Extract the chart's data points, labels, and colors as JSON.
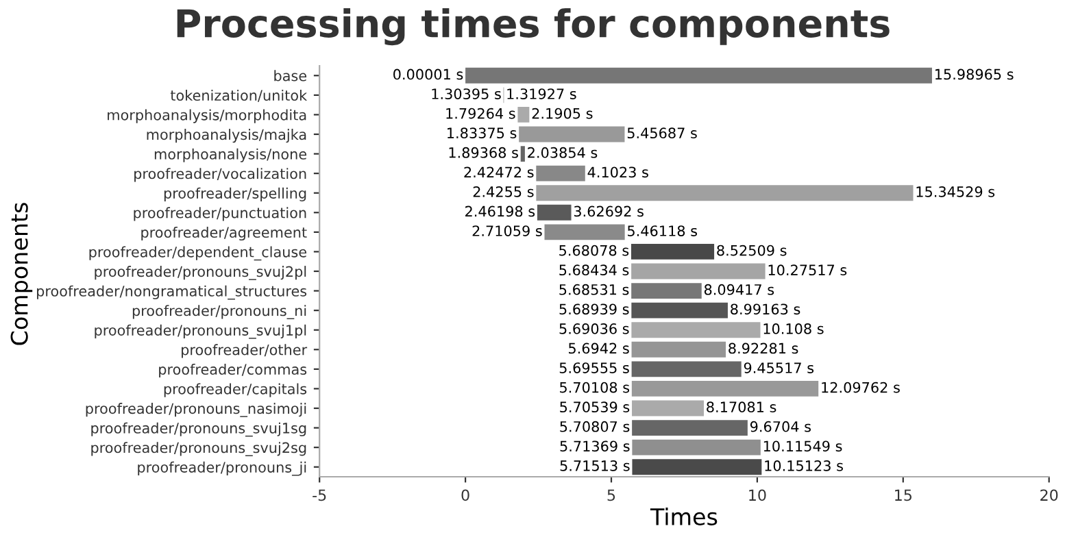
{
  "chart_data": {
    "type": "bar",
    "orientation": "horizontal",
    "title": "Processing times for components",
    "xlabel": "Times",
    "ylabel": "Components",
    "categories": [
      "base",
      "tokenization/unitok",
      "morphoanalysis/morphodita",
      "morphoanalysis/majka",
      "morphoanalysis/none",
      "proofreader/vocalization",
      "proofreader/spelling",
      "proofreader/punctuation",
      "proofreader/agreement",
      "proofreader/dependent_clause",
      "proofreader/pronouns_svuj2pl",
      "proofreader/nongramatical_structures",
      "proofreader/pronouns_ni",
      "proofreader/pronouns_svuj1pl",
      "proofreader/other",
      "proofreader/commas",
      "proofreader/capitals",
      "proofreader/pronouns_nasimoji",
      "proofreader/pronouns_svuj1sg",
      "proofreader/pronouns_svuj2sg",
      "proofreader/pronouns_ji"
    ],
    "base": [
      1e-05,
      1.30395,
      1.79264,
      1.83375,
      1.89368,
      2.42472,
      2.4255,
      2.46198,
      2.71059,
      5.68078,
      5.68434,
      5.68531,
      5.68939,
      5.69036,
      5.6942,
      5.69555,
      5.70108,
      5.70539,
      5.70807,
      5.71369,
      5.71513
    ],
    "values": [
      15.98964,
      0.01532,
      0.39786,
      3.62312,
      0.14486,
      1.67758,
      12.91979,
      1.16494,
      2.75059,
      2.84431,
      4.59083,
      2.40886,
      3.30224,
      4.41764,
      3.22861,
      3.75962,
      6.39654,
      2.46542,
      3.96233,
      4.4018,
      4.4361
    ],
    "colors": [
      "#767676",
      "#888888",
      "#aaaaaa",
      "#999999",
      "#666666",
      "#888888",
      "#a0a0a0",
      "#5a5a5a",
      "#8a8a8a",
      "#484848",
      "#a5a5a5",
      "#777777",
      "#555555",
      "#aaaaaa",
      "#959595",
      "#666666",
      "#999999",
      "#aaaaaa",
      "#666666",
      "#8f8f8f",
      "#4a4a4a"
    ],
    "value_labels": [
      "15.98965 s",
      "1.31927 s",
      "2.1905 s",
      "5.45687 s",
      "2.03854 s",
      "4.1023 s",
      "15.34529 s",
      "3.62692 s",
      "5.46118 s",
      "8.52509 s",
      "10.27517 s",
      "8.09417 s",
      "8.99163 s",
      "10.108 s",
      "8.92281 s",
      "9.45517 s",
      "12.09762 s",
      "8.17081 s",
      "9.6704 s",
      "10.11549 s",
      "10.15123 s"
    ],
    "annotations": [
      {
        "text": "0.00001 s",
        "x": 1e-05,
        "y": "base"
      },
      {
        "text": "1.30395 s",
        "x": 1.30395,
        "y": "tokenization/unitok"
      },
      {
        "text": "1.79264 s",
        "x": 1.79264,
        "y": "morphoanalysis/morphodita"
      },
      {
        "text": "1.83375 s",
        "x": 1.83375,
        "y": "morphoanalysis/majka"
      },
      {
        "text": "1.89368 s",
        "x": 1.89368,
        "y": "morphoanalysis/none"
      },
      {
        "text": "2.42472 s",
        "x": 2.42472,
        "y": "proofreader/vocalization"
      },
      {
        "text": "2.4255 s",
        "x": 2.4255,
        "y": "proofreader/spelling"
      },
      {
        "text": "2.46198 s",
        "x": 2.46198,
        "y": "proofreader/punctuation"
      },
      {
        "text": "2.71059 s",
        "x": 2.71059,
        "y": "proofreader/agreement"
      },
      {
        "text": "5.68078 s",
        "x": 5.68078,
        "y": "proofreader/dependent_clause"
      },
      {
        "text": "5.68434 s",
        "x": 5.68434,
        "y": "proofreader/pronouns_svuj2pl"
      },
      {
        "text": "5.68531 s",
        "x": 5.68531,
        "y": "proofreader/nongramatical_structures"
      },
      {
        "text": "5.68939 s",
        "x": 5.68939,
        "y": "proofreader/pronouns_ni"
      },
      {
        "text": "5.69036 s",
        "x": 5.69036,
        "y": "proofreader/pronouns_svuj1pl"
      },
      {
        "text": "5.6942 s",
        "x": 5.6942,
        "y": "proofreader/other"
      },
      {
        "text": "5.69555 s",
        "x": 5.69555,
        "y": "proofreader/commas"
      },
      {
        "text": "5.70108 s",
        "x": 5.70108,
        "y": "proofreader/capitals"
      },
      {
        "text": "5.70539 s",
        "x": 5.70539,
        "y": "proofreader/pronouns_nasimoji"
      },
      {
        "text": "5.70807 s",
        "x": 5.70807,
        "y": "proofreader/pronouns_svuj1sg"
      },
      {
        "text": "5.71369 s",
        "x": 5.71369,
        "y": "proofreader/pronouns_svuj2sg"
      },
      {
        "text": "5.71513 s",
        "x": 5.71513,
        "y": "proofreader/pronouns_ji"
      }
    ],
    "xlim": [
      -5,
      20
    ],
    "xticks": [
      -5,
      0,
      5,
      10,
      15,
      20
    ],
    "grid": false
  }
}
